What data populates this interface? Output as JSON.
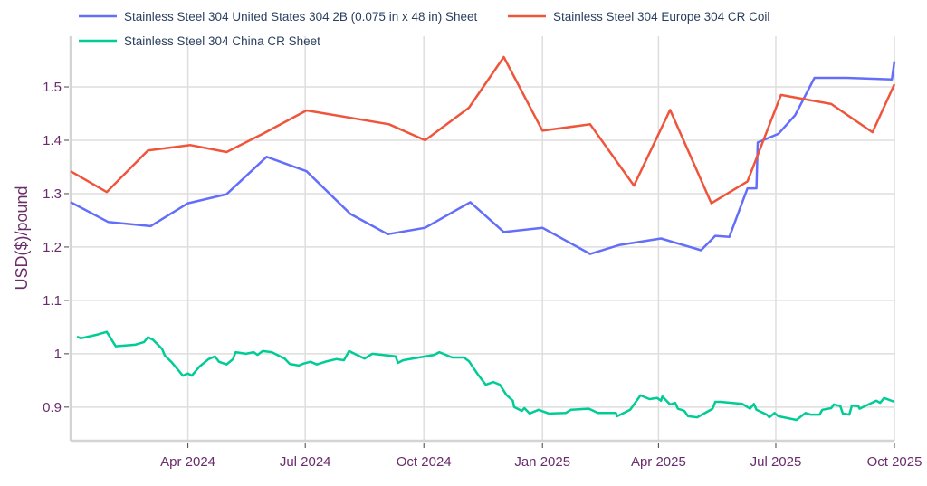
{
  "chart_data": {
    "type": "line",
    "title": "",
    "xlabel": "",
    "ylabel": "USD($)/pound",
    "xlim": [
      "2024-01-01",
      "2025-10-01"
    ],
    "ylim": [
      0.837,
      1.595
    ],
    "grid": true,
    "legend_placement": "top",
    "x_ticks": [
      {
        "date": "2024-04-01",
        "label": "Apr 2024"
      },
      {
        "date": "2024-07-01",
        "label": "Jul 2024"
      },
      {
        "date": "2024-10-01",
        "label": "Oct 2024"
      },
      {
        "date": "2025-01-01",
        "label": "Jan 2025"
      },
      {
        "date": "2025-04-01",
        "label": "Apr 2025"
      },
      {
        "date": "2025-07-01",
        "label": "Jul 2025"
      },
      {
        "date": "2025-10-01",
        "label": "Oct 2025"
      }
    ],
    "y_ticks": [
      {
        "value": 0.9,
        "label": "0.9"
      },
      {
        "value": 1.0,
        "label": "1"
      },
      {
        "value": 1.1,
        "label": "1.1"
      },
      {
        "value": 1.2,
        "label": "1.2"
      },
      {
        "value": 1.3,
        "label": "1.3"
      },
      {
        "value": 1.4,
        "label": "1.4"
      },
      {
        "value": 1.5,
        "label": "1.5"
      }
    ],
    "series": [
      {
        "name": "Stainless Steel 304 United States 304 2B (0.075 in x 48 in) Sheet",
        "color": "#636efa",
        "points": [
          [
            "2024-01-01",
            1.284
          ],
          [
            "2024-01-30",
            1.247
          ],
          [
            "2024-03-03",
            1.239
          ],
          [
            "2024-04-01",
            1.282
          ],
          [
            "2024-05-01",
            1.299
          ],
          [
            "2024-06-01",
            1.369
          ],
          [
            "2024-07-02",
            1.342
          ],
          [
            "2024-08-05",
            1.262
          ],
          [
            "2024-09-03",
            1.224
          ],
          [
            "2024-10-02",
            1.236
          ],
          [
            "2024-11-06",
            1.284
          ],
          [
            "2024-12-02",
            1.228
          ],
          [
            "2025-01-01",
            1.236
          ],
          [
            "2025-02-07",
            1.187
          ],
          [
            "2025-03-02",
            1.204
          ],
          [
            "2025-04-03",
            1.216
          ],
          [
            "2025-05-04",
            1.194
          ],
          [
            "2025-05-15",
            1.221
          ],
          [
            "2025-05-26",
            1.219
          ],
          [
            "2025-06-09",
            1.31
          ],
          [
            "2025-06-16",
            1.31
          ],
          [
            "2025-06-17",
            1.396
          ],
          [
            "2025-07-03",
            1.412
          ],
          [
            "2025-07-16",
            1.447
          ],
          [
            "2025-07-31",
            1.517
          ],
          [
            "2025-08-25",
            1.517
          ],
          [
            "2025-09-29",
            1.514
          ],
          [
            "2025-10-01",
            1.548
          ]
        ]
      },
      {
        "name": "Stainless Steel 304 Europe 304 CR Coil",
        "color": "#ef553b",
        "points": [
          [
            "2024-01-01",
            1.342
          ],
          [
            "2024-01-29",
            1.303
          ],
          [
            "2024-03-01",
            1.381
          ],
          [
            "2024-04-03",
            1.391
          ],
          [
            "2024-05-01",
            1.378
          ],
          [
            "2024-05-29",
            1.412
          ],
          [
            "2024-07-02",
            1.456
          ],
          [
            "2024-09-04",
            1.43
          ],
          [
            "2024-10-02",
            1.4
          ],
          [
            "2024-11-05",
            1.461
          ],
          [
            "2024-12-02",
            1.556
          ],
          [
            "2025-01-01",
            1.418
          ],
          [
            "2025-02-07",
            1.43
          ],
          [
            "2025-03-13",
            1.315
          ],
          [
            "2025-04-10",
            1.457
          ],
          [
            "2025-05-12",
            1.282
          ],
          [
            "2025-06-09",
            1.323
          ],
          [
            "2025-07-05",
            1.485
          ],
          [
            "2025-08-13",
            1.468
          ],
          [
            "2025-09-14",
            1.415
          ],
          [
            "2025-10-01",
            1.505
          ]
        ]
      },
      {
        "name": "Stainless Steel 304 China CR Sheet",
        "color": "#00cc96",
        "points": [
          [
            "2024-01-06",
            1.032
          ],
          [
            "2024-01-09",
            1.029
          ],
          [
            "2024-01-22",
            1.036
          ],
          [
            "2024-01-29",
            1.041
          ],
          [
            "2024-02-05",
            1.014
          ],
          [
            "2024-02-20",
            1.017
          ],
          [
            "2024-02-27",
            1.022
          ],
          [
            "2024-03-01",
            1.031
          ],
          [
            "2024-03-05",
            1.026
          ],
          [
            "2024-03-12",
            1.009
          ],
          [
            "2024-03-14",
            0.997
          ],
          [
            "2024-03-19",
            0.985
          ],
          [
            "2024-03-24",
            0.971
          ],
          [
            "2024-03-28",
            0.959
          ],
          [
            "2024-04-01",
            0.963
          ],
          [
            "2024-04-04",
            0.959
          ],
          [
            "2024-04-10",
            0.976
          ],
          [
            "2024-04-17",
            0.99
          ],
          [
            "2024-04-22",
            0.995
          ],
          [
            "2024-04-25",
            0.985
          ],
          [
            "2024-05-01",
            0.98
          ],
          [
            "2024-05-06",
            0.99
          ],
          [
            "2024-05-08",
            1.003
          ],
          [
            "2024-05-16",
            1.0
          ],
          [
            "2024-05-22",
            1.003
          ],
          [
            "2024-05-25",
            0.998
          ],
          [
            "2024-05-29",
            1.005
          ],
          [
            "2024-06-05",
            1.003
          ],
          [
            "2024-06-15",
            0.991
          ],
          [
            "2024-06-19",
            0.981
          ],
          [
            "2024-06-26",
            0.978
          ],
          [
            "2024-06-29",
            0.981
          ],
          [
            "2024-07-05",
            0.985
          ],
          [
            "2024-07-10",
            0.98
          ],
          [
            "2024-07-18",
            0.986
          ],
          [
            "2024-07-25",
            0.99
          ],
          [
            "2024-07-31",
            0.988
          ],
          [
            "2024-08-04",
            1.005
          ],
          [
            "2024-08-10",
            0.998
          ],
          [
            "2024-08-16",
            0.991
          ],
          [
            "2024-08-22",
            1.0
          ],
          [
            "2024-09-09",
            0.995
          ],
          [
            "2024-09-11",
            0.983
          ],
          [
            "2024-09-15",
            0.988
          ],
          [
            "2024-10-09",
            0.998
          ],
          [
            "2024-10-13",
            1.003
          ],
          [
            "2024-10-23",
            0.993
          ],
          [
            "2024-11-01",
            0.993
          ],
          [
            "2024-11-05",
            0.986
          ],
          [
            "2024-11-12",
            0.961
          ],
          [
            "2024-11-18",
            0.942
          ],
          [
            "2024-11-24",
            0.947
          ],
          [
            "2024-11-29",
            0.942
          ],
          [
            "2024-12-04",
            0.923
          ],
          [
            "2024-12-09",
            0.912
          ],
          [
            "2024-12-10",
            0.9
          ],
          [
            "2024-12-16",
            0.893
          ],
          [
            "2024-12-18",
            0.898
          ],
          [
            "2024-12-22",
            0.888
          ],
          [
            "2024-12-29",
            0.895
          ],
          [
            "2025-01-06",
            0.888
          ],
          [
            "2025-01-19",
            0.889
          ],
          [
            "2025-01-23",
            0.895
          ],
          [
            "2025-02-06",
            0.897
          ],
          [
            "2025-02-13",
            0.889
          ],
          [
            "2025-02-27",
            0.889
          ],
          [
            "2025-02-28",
            0.883
          ],
          [
            "2025-03-10",
            0.895
          ],
          [
            "2025-03-13",
            0.905
          ],
          [
            "2025-03-18",
            0.922
          ],
          [
            "2025-03-25",
            0.915
          ],
          [
            "2025-03-31",
            0.917
          ],
          [
            "2025-04-03",
            0.912
          ],
          [
            "2025-04-04",
            0.92
          ],
          [
            "2025-04-10",
            0.905
          ],
          [
            "2025-04-14",
            0.908
          ],
          [
            "2025-04-16",
            0.897
          ],
          [
            "2025-04-21",
            0.893
          ],
          [
            "2025-04-24",
            0.883
          ],
          [
            "2025-05-01",
            0.881
          ],
          [
            "2025-05-13",
            0.897
          ],
          [
            "2025-05-15",
            0.91
          ],
          [
            "2025-05-19",
            0.91
          ],
          [
            "2025-06-05",
            0.906
          ],
          [
            "2025-06-11",
            0.897
          ],
          [
            "2025-06-14",
            0.906
          ],
          [
            "2025-06-16",
            0.895
          ],
          [
            "2025-06-24",
            0.886
          ],
          [
            "2025-06-26",
            0.881
          ],
          [
            "2025-06-30",
            0.889
          ],
          [
            "2025-07-03",
            0.883
          ],
          [
            "2025-07-17",
            0.876
          ],
          [
            "2025-07-24",
            0.889
          ],
          [
            "2025-07-28",
            0.886
          ],
          [
            "2025-08-04",
            0.886
          ],
          [
            "2025-08-06",
            0.895
          ],
          [
            "2025-08-13",
            0.898
          ],
          [
            "2025-08-15",
            0.905
          ],
          [
            "2025-08-20",
            0.902
          ],
          [
            "2025-08-22",
            0.888
          ],
          [
            "2025-08-27",
            0.886
          ],
          [
            "2025-08-29",
            0.903
          ],
          [
            "2025-09-03",
            0.902
          ],
          [
            "2025-09-04",
            0.897
          ],
          [
            "2025-09-17",
            0.912
          ],
          [
            "2025-09-20",
            0.908
          ],
          [
            "2025-09-23",
            0.917
          ],
          [
            "2025-10-01",
            0.91
          ]
        ]
      }
    ]
  }
}
